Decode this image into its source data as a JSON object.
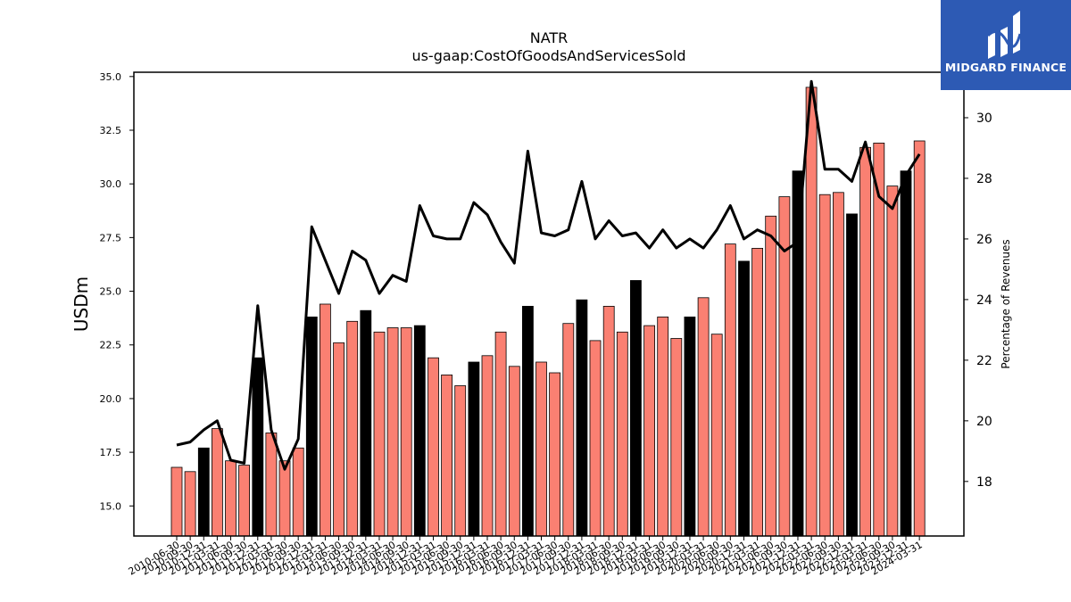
{
  "chart_data": {
    "type": "bar",
    "title": "NATR",
    "subtitle": "us-gaap:CostOfGoodsAndServicesSold",
    "ylabel": "USDm",
    "y2label": "Percentage of Revenues",
    "ylim": [
      13.6,
      35.2
    ],
    "y2lim": [
      16.2,
      31.5
    ],
    "yticks": [
      "15.0",
      "17.5",
      "20.0",
      "22.5",
      "25.0",
      "27.5",
      "30.0",
      "32.5",
      "35.0"
    ],
    "y2ticks": [
      "18",
      "20",
      "22",
      "24",
      "26",
      "28",
      "30"
    ],
    "colors": {
      "bar_quarter": "#fa8072",
      "bar_annual": "#000000",
      "line": "#000000"
    },
    "categories": [
      "2010-06-30",
      "2010-09-30",
      "2010-12-31",
      "2011-03-31",
      "2011-06-30",
      "2011-09-30",
      "2011-12-31",
      "2012-03-31",
      "2012-06-30",
      "2012-09-30",
      "2012-12-31",
      "2013-03-31",
      "2013-06-30",
      "2013-09-30",
      "2013-12-31",
      "2014-03-31",
      "2014-06-30",
      "2014-09-30",
      "2014-12-31",
      "2015-03-31",
      "2015-06-30",
      "2015-09-30",
      "2015-12-31",
      "2016-03-31",
      "2016-06-30",
      "2016-09-30",
      "2016-12-31",
      "2017-03-31",
      "2017-06-30",
      "2017-09-30",
      "2017-12-31",
      "2018-03-31",
      "2018-06-30",
      "2018-09-30",
      "2018-12-31",
      "2019-03-31",
      "2019-06-30",
      "2019-09-30",
      "2019-12-31",
      "2020-03-31",
      "2020-06-30",
      "2020-09-30",
      "2020-12-31",
      "2021-03-31",
      "2021-06-30",
      "2021-09-30",
      "2021-12-31",
      "2022-03-31",
      "2022-06-30",
      "2022-09-30",
      "2022-12-31",
      "2023-03-31",
      "2023-06-30",
      "2023-09-30",
      "2023-12-31",
      "2024-03-31"
    ],
    "series": [
      {
        "values": [
          16.8,
          16.6,
          17.7,
          18.6,
          17.1,
          16.9,
          21.9,
          18.4,
          17.1,
          17.7,
          23.8,
          24.4,
          22.6,
          23.6,
          24.1,
          23.1,
          23.3,
          23.3,
          23.4,
          21.9,
          21.1,
          20.6,
          21.7,
          22.0,
          23.1,
          21.5,
          24.3,
          21.7,
          21.2,
          23.5,
          24.6,
          22.7,
          24.3,
          23.1,
          25.5,
          23.4,
          23.8,
          22.8,
          23.8,
          24.7,
          23.0,
          27.2,
          26.4,
          27.0,
          28.5,
          29.4,
          30.6,
          34.5,
          29.5,
          29.6,
          28.6,
          31.7,
          31.9,
          29.9,
          30.6,
          32.0
        ],
        "annual": [
          false,
          false,
          true,
          false,
          false,
          false,
          true,
          false,
          false,
          false,
          true,
          false,
          false,
          false,
          true,
          false,
          false,
          false,
          true,
          false,
          false,
          false,
          true,
          false,
          false,
          false,
          true,
          false,
          false,
          false,
          true,
          false,
          false,
          false,
          true,
          false,
          false,
          false,
          true,
          false,
          false,
          false,
          true,
          false,
          false,
          false,
          true,
          false,
          false,
          false,
          true,
          false,
          false,
          false,
          true,
          false
        ]
      },
      {
        "axis": "right",
        "values": [
          19.2,
          19.3,
          19.7,
          20.0,
          18.7,
          18.6,
          23.8,
          19.7,
          18.4,
          19.4,
          26.4,
          25.3,
          24.2,
          25.6,
          25.3,
          24.2,
          24.8,
          24.6,
          27.1,
          26.1,
          26.0,
          26.0,
          27.2,
          26.8,
          25.9,
          25.2,
          28.9,
          26.2,
          26.1,
          26.3,
          27.9,
          26.0,
          26.6,
          26.1,
          26.2,
          25.7,
          26.3,
          25.7,
          26.0,
          25.7,
          26.3,
          27.1,
          26.0,
          26.3,
          26.1,
          25.6,
          25.9,
          31.2,
          28.3,
          28.3,
          27.9,
          29.2,
          27.4,
          27.0,
          28.1,
          28.8
        ]
      }
    ],
    "legend": "none",
    "grid": false
  },
  "logo": {
    "text": "MIDGARD FINANCE",
    "icon": "midgard-logo-icon"
  }
}
